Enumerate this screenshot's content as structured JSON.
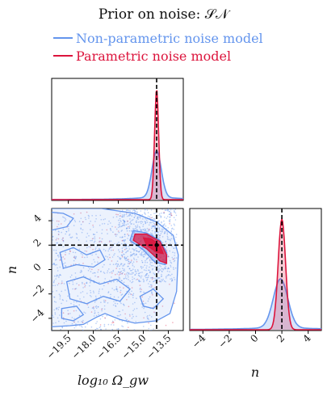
{
  "title": "Prior on noise: 𝒮𝒩",
  "colors": {
    "nonparam": "#6495ED",
    "param": "#DC143C",
    "truth": "#000000"
  },
  "chart_data": {
    "type": "corner",
    "series": [
      {
        "name": "Non-parametric  noise model",
        "color": "#6495ED"
      },
      {
        "name": "Parametric noise  model",
        "color": "#DC143C"
      }
    ],
    "truth": {
      "log10_omega_gw": -14.2,
      "n": 2.0
    },
    "panels": {
      "omega_marginal": {
        "xlim": [
          -20.5,
          -12.6
        ],
        "nonparam_peak": {
          "center": -14.2,
          "height": 0.44
        },
        "param_peak": {
          "center": -14.2,
          "height": 1.0
        }
      },
      "joint": {
        "xlabel": "log₁₀ Ω_gw",
        "ylabel": "n",
        "xlim": [
          -20.5,
          -12.6
        ],
        "ylim": [
          -5,
          5
        ],
        "xticks": [
          "−19.5",
          "−18.0",
          "−16.5",
          "−15.0",
          "−13.5"
        ],
        "xtick_values": [
          -19.5,
          -18.0,
          -16.5,
          -15.0,
          -13.5
        ],
        "yticks": [
          "−4",
          "−2",
          "0",
          "2",
          "4"
        ],
        "ytick_values": [
          -4,
          -2,
          0,
          2,
          4
        ]
      },
      "n_marginal": {
        "xlabel": "n",
        "xlim": [
          -5,
          5
        ],
        "xticks": [
          "−4",
          "−2",
          "0",
          "2",
          "4"
        ],
        "xtick_values": [
          -4,
          -2,
          0,
          2,
          4
        ],
        "nonparam_peak": {
          "center": 1.9,
          "height": 0.46
        },
        "param_peak": {
          "center": 2.0,
          "height": 1.0
        }
      }
    }
  }
}
